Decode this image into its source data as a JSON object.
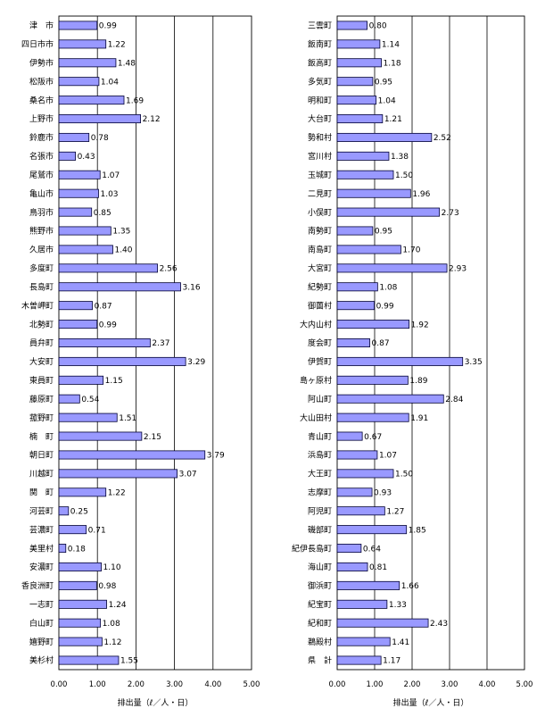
{
  "chart_data": [
    {
      "type": "bar",
      "orientation": "horizontal",
      "xlabel": "排出量（ℓ／人・日）",
      "xlim": [
        0,
        5
      ],
      "xticks": [
        "0.00",
        "1.00",
        "2.00",
        "3.00",
        "4.00",
        "5.00"
      ],
      "grid": "vertical",
      "categories": [
        "津　市",
        "四日市市",
        "伊勢市",
        "松阪市",
        "桑名市",
        "上野市",
        "鈴鹿市",
        "名張市",
        "尾鷲市",
        "亀山市",
        "鳥羽市",
        "熊野市",
        "久居市",
        "多度町",
        "長島町",
        "木曽岬町",
        "北勢町",
        "員弁町",
        "大安町",
        "東員町",
        "藤原町",
        "菰野町",
        "楠　町",
        "朝日町",
        "川越町",
        "関　町",
        "河芸町",
        "芸濃町",
        "美里村",
        "安濃町",
        "香良洲町",
        "一志町",
        "白山町",
        "嬉野町",
        "美杉村"
      ],
      "values": [
        0.99,
        1.22,
        1.48,
        1.04,
        1.69,
        2.12,
        0.78,
        0.43,
        1.07,
        1.03,
        0.85,
        1.35,
        1.4,
        2.56,
        3.16,
        0.87,
        0.99,
        2.37,
        3.29,
        1.15,
        0.54,
        1.51,
        2.15,
        3.79,
        3.07,
        1.22,
        0.25,
        0.71,
        0.18,
        1.1,
        0.98,
        1.24,
        1.08,
        1.12,
        1.55
      ],
      "value_labels": [
        "0.99",
        "1.22",
        "1.48",
        "1.04",
        "1.69",
        "2.12",
        "0.78",
        "0.43",
        "1.07",
        "1.03",
        "0.85",
        "1.35",
        "1.40",
        "2.56",
        "3.16",
        "0.87",
        "0.99",
        "2.37",
        "3.29",
        "1.15",
        "0.54",
        "1.51",
        "2.15",
        "3.79",
        "3.07",
        "1.22",
        "0.25",
        "0.71",
        "0.18",
        "1.10",
        "0.98",
        "1.24",
        "1.08",
        "1.12",
        "1.55"
      ],
      "bar_color": "#9999ff"
    },
    {
      "type": "bar",
      "orientation": "horizontal",
      "xlabel": "排出量（ℓ／人・日）",
      "xlim": [
        0,
        5
      ],
      "xticks": [
        "0.00",
        "1.00",
        "2.00",
        "3.00",
        "4.00",
        "5.00"
      ],
      "grid": "vertical",
      "categories": [
        "三雲町",
        "飯南町",
        "飯高町",
        "多気町",
        "明和町",
        "大台町",
        "勢和村",
        "宮川村",
        "玉城町",
        "二見町",
        "小俣町",
        "南勢町",
        "南島町",
        "大宮町",
        "紀勢町",
        "御薗村",
        "大内山村",
        "度会町",
        "伊賀町",
        "島ヶ原村",
        "阿山町",
        "大山田村",
        "青山町",
        "浜島町",
        "大王町",
        "志摩町",
        "阿児町",
        "磯部町",
        "紀伊長島町",
        "海山町",
        "御浜町",
        "紀宝町",
        "紀和町",
        "鵜殿村",
        "県　計"
      ],
      "values": [
        0.8,
        1.14,
        1.18,
        0.95,
        1.04,
        1.21,
        2.52,
        1.38,
        1.5,
        1.96,
        2.73,
        0.95,
        1.7,
        2.93,
        1.08,
        0.99,
        1.92,
        0.87,
        3.35,
        1.89,
        2.84,
        1.91,
        0.67,
        1.07,
        1.5,
        0.93,
        1.27,
        1.85,
        0.64,
        0.81,
        1.66,
        1.33,
        2.43,
        1.41,
        1.17
      ],
      "value_labels": [
        "0.80",
        "1.14",
        "1.18",
        "0.95",
        "1.04",
        "1.21",
        "2.52",
        "1.38",
        "1.50",
        "1.96",
        "2.73",
        "0.95",
        "1.70",
        "2.93",
        "1.08",
        "0.99",
        "1.92",
        "0.87",
        "3.35",
        "1.89",
        "2.84",
        "1.91",
        "0.67",
        "1.07",
        "1.50",
        "0.93",
        "1.27",
        "1.85",
        "0.64",
        "0.81",
        "1.66",
        "1.33",
        "2.43",
        "1.41",
        "1.17"
      ],
      "bar_color": "#9999ff"
    }
  ]
}
